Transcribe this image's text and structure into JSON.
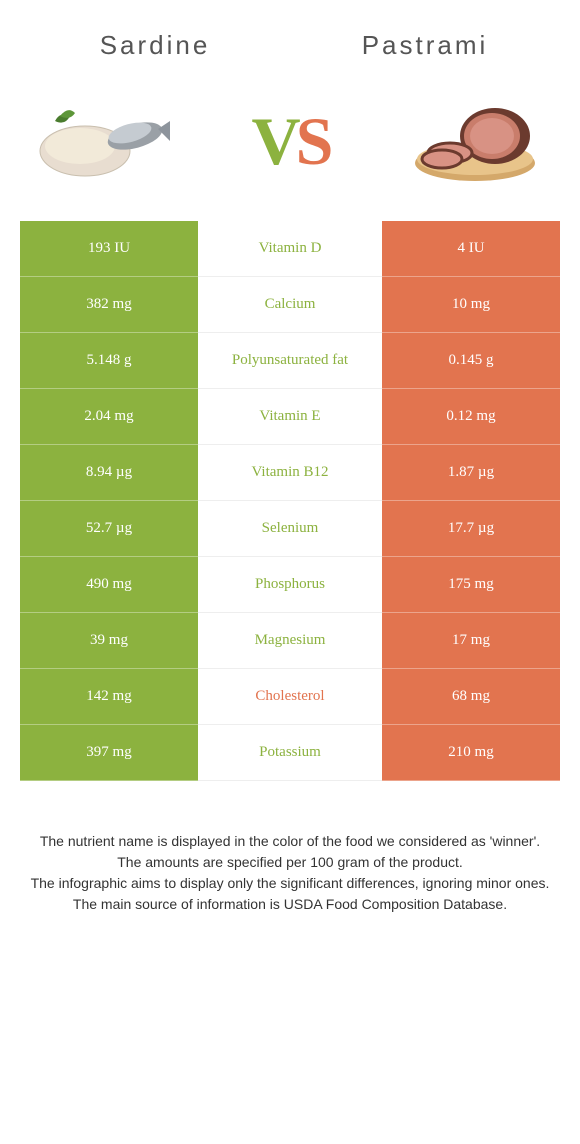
{
  "colors": {
    "left": "#8cb23f",
    "right": "#e2744f",
    "left_text": "#ffffff",
    "right_text": "#ffffff",
    "mid_bg": "#ffffff"
  },
  "header": {
    "left_title": "Sardine",
    "right_title": "Pastrami",
    "vs_v": "V",
    "vs_s": "S"
  },
  "rows": [
    {
      "left": "193 IU",
      "label": "Vitamin D",
      "right": "4 IU",
      "winner": "left"
    },
    {
      "left": "382 mg",
      "label": "Calcium",
      "right": "10 mg",
      "winner": "left"
    },
    {
      "left": "5.148 g",
      "label": "Polyunsaturated fat",
      "right": "0.145 g",
      "winner": "left"
    },
    {
      "left": "2.04 mg",
      "label": "Vitamin E",
      "right": "0.12 mg",
      "winner": "left"
    },
    {
      "left": "8.94 µg",
      "label": "Vitamin B12",
      "right": "1.87 µg",
      "winner": "left"
    },
    {
      "left": "52.7 µg",
      "label": "Selenium",
      "right": "17.7 µg",
      "winner": "left"
    },
    {
      "left": "490 mg",
      "label": "Phosphorus",
      "right": "175 mg",
      "winner": "left"
    },
    {
      "left": "39 mg",
      "label": "Magnesium",
      "right": "17 mg",
      "winner": "left"
    },
    {
      "left": "142 mg",
      "label": "Cholesterol",
      "right": "68 mg",
      "winner": "right"
    },
    {
      "left": "397 mg",
      "label": "Potassium",
      "right": "210 mg",
      "winner": "left"
    }
  ],
  "footer": {
    "l1": "The nutrient name is displayed in the color of the food we considered as 'winner'.",
    "l2": "The amounts are specified per 100 gram of the product.",
    "l3": "The infographic aims to display only the significant differences, ignoring minor ones.",
    "l4": "The main source of information is USDA Food Composition Database."
  }
}
